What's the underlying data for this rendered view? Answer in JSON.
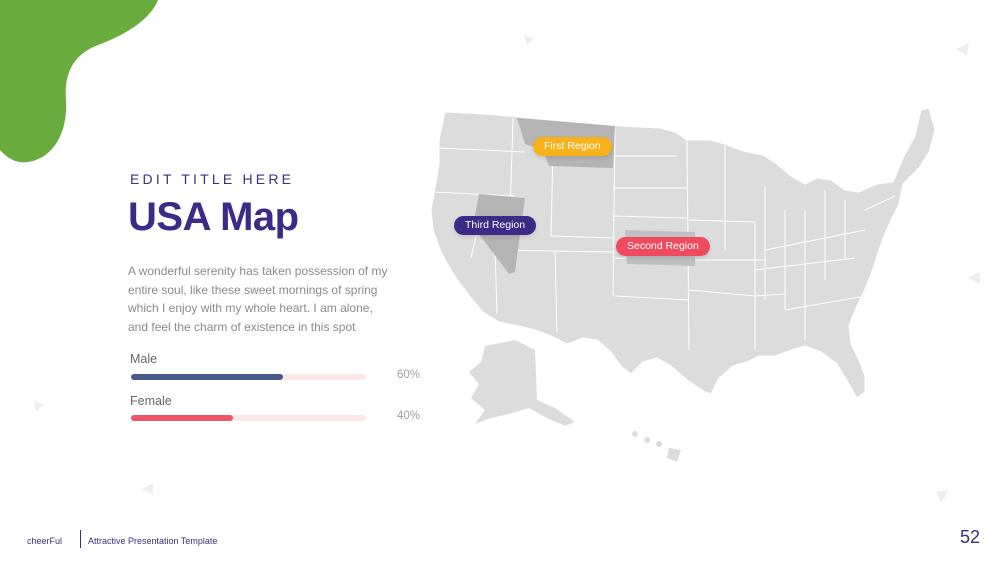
{
  "slide": {
    "subtitle": "EDIT TITLE HERE",
    "title": "USA Map",
    "description": "A wonderful serenity has taken possession of my entire soul, like these sweet mornings of spring which I enjoy with my whole heart. I am alone, and feel the charm of existence in this spot"
  },
  "bars": [
    {
      "label": "Male",
      "value_text": "60%",
      "value": 60,
      "color": "#4a5a8a"
    },
    {
      "label": "Female",
      "value_text": "40%",
      "value": 40,
      "color": "#ee5567"
    }
  ],
  "regions": [
    {
      "label": "First Region",
      "color": "#f7b21b"
    },
    {
      "label": "Second Region",
      "color": "#ef4b5f"
    },
    {
      "label": "Third Region",
      "color": "#3b2a86"
    }
  ],
  "footer": {
    "brand": "cheerFul",
    "template": "Attractive Presentation Template",
    "page_number": "52"
  },
  "colors": {
    "accent_green": "#6aab3e",
    "brand_purple": "#3b2a86",
    "map_gray": "#dcdcdc",
    "highlight_gray": "#b4b4b4"
  }
}
